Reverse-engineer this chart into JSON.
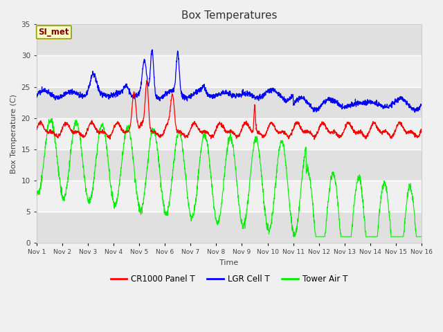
{
  "title": "Box Temperatures",
  "ylabel": "Box Temperature (C)",
  "xlabel": "Time",
  "ylim": [
    0,
    35
  ],
  "xlim": [
    0,
    15
  ],
  "x_tick_labels": [
    "Nov 1",
    "Nov 2",
    "Nov 3",
    "Nov 4",
    "Nov 5",
    "Nov 6",
    "Nov 7",
    "Nov 8",
    "Nov 9",
    "Nov 10",
    "Nov 11",
    "Nov 12",
    "Nov 13",
    "Nov 14",
    "Nov 15",
    "Nov 16"
  ],
  "fig_bg_color": "#f0f0f0",
  "plot_bg_color": "#ffffff",
  "band_color_dark": "#e0e0e0",
  "band_color_light": "#f0f0f0",
  "legend_label": "SI_met",
  "series_colors": {
    "cr1000": "#ff0000",
    "lgr": "#0000ff",
    "tower": "#00ee00"
  },
  "series_labels": {
    "cr1000": "CR1000 Panel T",
    "lgr": "LGR Cell T",
    "tower": "Tower Air T"
  },
  "y_ticks": [
    0,
    5,
    10,
    15,
    20,
    25,
    30,
    35
  ]
}
